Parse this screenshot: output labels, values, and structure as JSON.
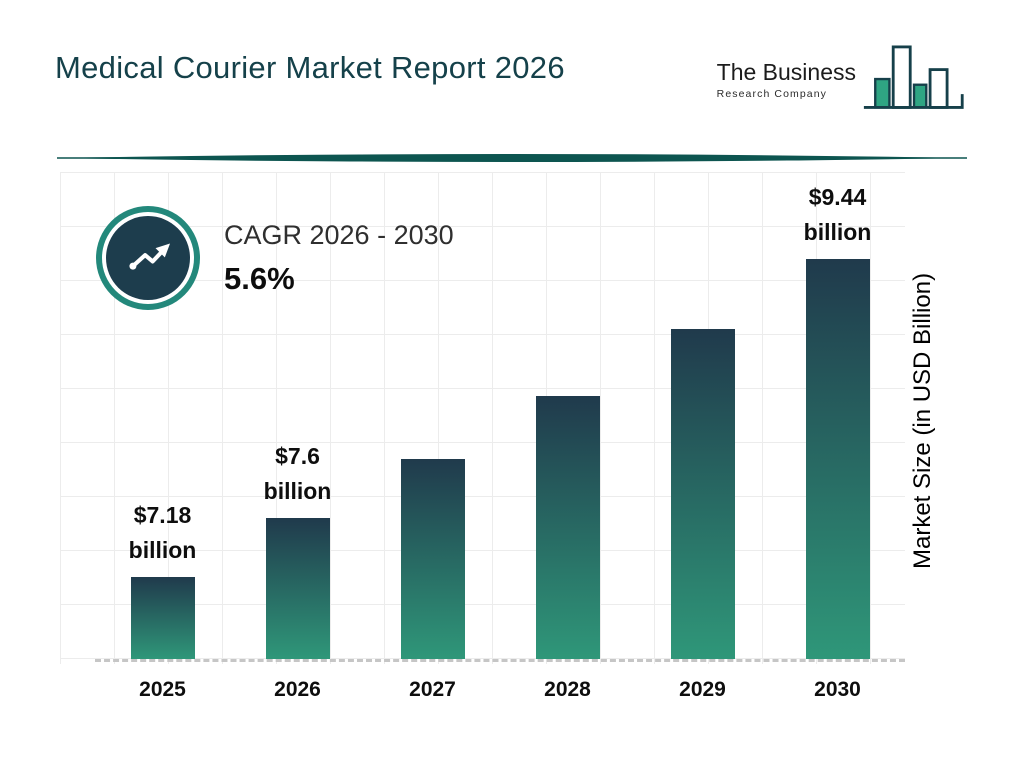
{
  "page": {
    "title": "Medical Courier Market Report 2026"
  },
  "logo": {
    "line1": "The Business",
    "line2": "Research Company"
  },
  "cagr": {
    "label": "CAGR 2026 - 2030",
    "value": "5.6%"
  },
  "chart_data": {
    "type": "bar",
    "title": "Medical Courier Market Report 2026",
    "categories": [
      "2025",
      "2026",
      "2027",
      "2028",
      "2029",
      "2030"
    ],
    "values": [
      7.18,
      7.6,
      8.02,
      8.47,
      8.94,
      9.44
    ],
    "value_labels": [
      {
        "amount": "$7.18",
        "unit": "billion"
      },
      {
        "amount": "$7.6",
        "unit": "billion"
      },
      null,
      null,
      null,
      {
        "amount": "$9.44",
        "unit": "billion"
      }
    ],
    "xlabel": "",
    "ylabel": "Market Size (in USD Billion)",
    "unit": "USD Billion",
    "ylim": [
      6.6,
      10.0
    ],
    "grid": true,
    "legend": false
  },
  "colors": {
    "title": "#15414a",
    "divider": "#0d5550",
    "bar_top": "#203a4c",
    "bar_bottom": "#2f9779",
    "cagr_ring": "#23887b",
    "cagr_circle": "#1d3d4d",
    "logo_outline": "#16404a",
    "logo_fill": "#2fa583"
  }
}
